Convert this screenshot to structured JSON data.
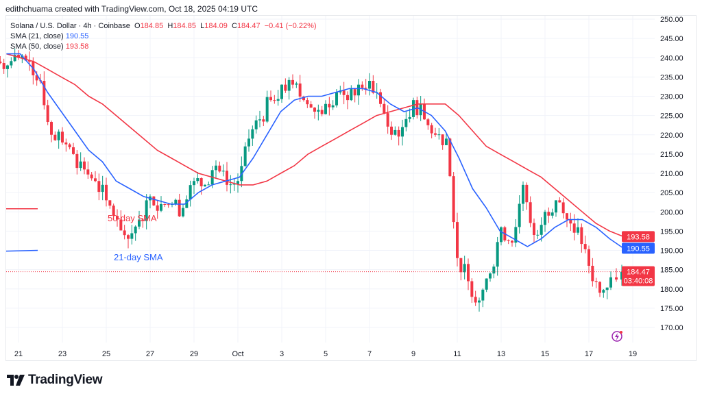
{
  "credit": "edithchuama created with TradingView.com, Oct 18, 2025 04:19 UTC",
  "legend": {
    "symbol": "Solana / U.S. Dollar · 4h · Coinbase",
    "o_label": "O",
    "o": "184.85",
    "h_label": "H",
    "h": "184.85",
    "l_label": "L",
    "l": "184.09",
    "c_label": "C",
    "c": "184.47",
    "change": "−0.41 (−0.22%)",
    "sma21_label": "SMA (21, close)",
    "sma21": "190.55",
    "sma50_label": "SMA (50, close)",
    "sma50": "193.58"
  },
  "brand": "TradingView",
  "colors": {
    "up": "#089981",
    "down": "#f23645",
    "sma21": "#2962ff",
    "sma50": "#f23645",
    "grid": "#f0f3fa"
  },
  "chart_data": {
    "type": "candlestick",
    "title": "Solana / U.S. Dollar · 4h · Coinbase",
    "ylim": [
      167,
      252
    ],
    "y_ticks": [
      "250.00",
      "245.00",
      "240.00",
      "235.00",
      "230.00",
      "225.00",
      "220.00",
      "215.00",
      "210.00",
      "205.00",
      "200.00",
      "195.00",
      "190.00",
      "185.00",
      "180.00",
      "175.00",
      "170.00"
    ],
    "x_ticks": [
      "21",
      "23",
      "25",
      "27",
      "29",
      "Oct",
      "3",
      "5",
      "7",
      "9",
      "11",
      "13",
      "15",
      "17",
      "19"
    ],
    "x_tick_days": [
      21,
      23,
      25,
      27,
      29,
      31,
      33,
      35,
      37,
      39,
      41,
      43,
      45,
      47,
      49
    ],
    "close_start_day": 20.5,
    "close_step_days": 0.5,
    "closes_12h": [
      238,
      240,
      239,
      234,
      220,
      218,
      215,
      211,
      208,
      203,
      198,
      193,
      198,
      204,
      202,
      202,
      201,
      208,
      207,
      212,
      207,
      208,
      219,
      224,
      229,
      233,
      233,
      229,
      226,
      228,
      231,
      229,
      233,
      234,
      228,
      220,
      222,
      229,
      224,
      220,
      219,
      188,
      182,
      177,
      184,
      196,
      192,
      207,
      194,
      200,
      203,
      198,
      196,
      186,
      179,
      183
    ],
    "last_close": 184.47,
    "sma_start_day": 20.45,
    "sma_step_days": 0.625,
    "sma21": [
      241,
      241,
      237,
      231,
      226,
      221,
      216,
      213,
      208,
      206,
      204,
      203,
      202,
      202,
      205,
      207,
      208,
      209,
      214,
      220,
      226,
      229,
      230,
      230,
      231,
      232,
      232,
      231,
      228,
      226,
      227,
      225,
      221,
      214,
      206,
      201,
      195,
      193,
      191,
      193,
      196,
      198,
      198,
      196,
      193,
      190.55
    ],
    "sma50": [
      241,
      240,
      239,
      237,
      235,
      233,
      230,
      228,
      225,
      222,
      219,
      216,
      214,
      212,
      210,
      209,
      208,
      207,
      207,
      208,
      210,
      212,
      215,
      217,
      219,
      221,
      223,
      225,
      226,
      227,
      228,
      228,
      228,
      225,
      221,
      217,
      215,
      213,
      211,
      209,
      206,
      203,
      200,
      197,
      195,
      193.58
    ],
    "price_labels": {
      "sma50": "193.58",
      "sma21": "190.55",
      "last": "184.47",
      "countdown": "03:40:08"
    },
    "annotations": [
      {
        "text": "50-day SMA",
        "color": "#f23645",
        "price": 200.8
      },
      {
        "text": "21-day SMA",
        "color": "#2962ff",
        "price": 189.9
      }
    ]
  }
}
